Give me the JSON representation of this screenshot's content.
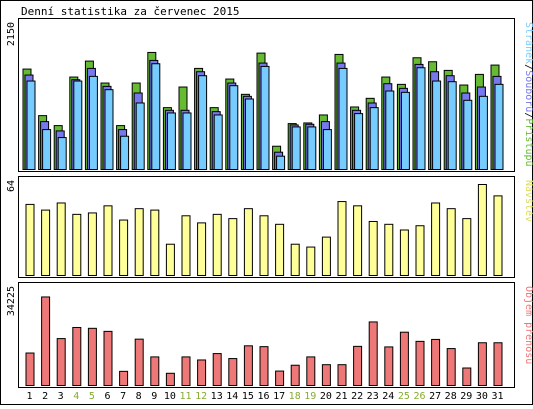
{
  "chart_data": {
    "type": "bar",
    "title": "Denní statistika za červenec 2015",
    "categories": [
      "1",
      "2",
      "3",
      "4",
      "5",
      "6",
      "7",
      "8",
      "9",
      "10",
      "11",
      "12",
      "13",
      "14",
      "15",
      "16",
      "17",
      "18",
      "19",
      "20",
      "21",
      "22",
      "23",
      "24",
      "25",
      "26",
      "27",
      "28",
      "29",
      "30",
      "31"
    ],
    "weekend_days": [
      "4",
      "5",
      "11",
      "12",
      "18",
      "19",
      "25",
      "26"
    ],
    "colors": {
      "pristupu": "#66bb33",
      "souboru": "#7777ee",
      "stranek": "#77ccff",
      "navstev": "#ffff99",
      "objem": "#ee7777",
      "weekend_label": "#88aa33",
      "frame": "#000000",
      "background": "#ffffff"
    },
    "panels": [
      {
        "id": "hits",
        "max_label": "2150",
        "ylim": [
          0,
          2150
        ],
        "legend": {
          "stranek": "Stránek",
          "sep1": "/",
          "souboru": "Souborů",
          "sep2": "/",
          "pristupu": "Přístupů"
        },
        "series": [
          {
            "name": "Přístupů",
            "key": "pristupu",
            "values": [
              1510,
              810,
              660,
              1390,
              1630,
              1300,
              660,
              1300,
              1760,
              930,
              1240,
              1520,
              930,
              1360,
              1130,
              1750,
              350,
              690,
              700,
              820,
              1730,
              940,
              1070,
              1390,
              1280,
              1680,
              1620,
              1490,
              1270,
              1430,
              1570
            ]
          },
          {
            "name": "Souborů",
            "key": "souboru",
            "values": [
              1420,
              720,
              580,
              1350,
              1520,
              1250,
              600,
              1150,
              1640,
              890,
              890,
              1470,
              870,
              1300,
              1100,
              1600,
              260,
              670,
              680,
              720,
              1600,
              890,
              1000,
              1290,
              1220,
              1580,
              1470,
              1410,
              1150,
              1240,
              1400
            ]
          },
          {
            "name": "Stránek",
            "key": "stranek",
            "values": [
              1330,
              600,
              480,
              1330,
              1400,
              1200,
              500,
              1000,
              1590,
              850,
              850,
              1410,
              820,
              1260,
              1060,
              1550,
              200,
              640,
              640,
              600,
              1520,
              840,
              930,
              1180,
              1160,
              1530,
              1330,
              1320,
              1040,
              1100,
              1280
            ]
          }
        ]
      },
      {
        "id": "visits",
        "max_label": "64",
        "ylim": [
          0,
          64
        ],
        "legend": "Návštěv",
        "series": [
          {
            "name": "Návštěv",
            "key": "navstev",
            "values": [
              50,
              46,
              51,
              43,
              44,
              49,
              39,
              47,
              46,
              22,
              42,
              37,
              43,
              40,
              47,
              42,
              36,
              22,
              20,
              27,
              52,
              49,
              38,
              36,
              32,
              35,
              51,
              47,
              40,
              64,
              56
            ]
          }
        ]
      },
      {
        "id": "volume",
        "max_label": "34225",
        "ylim": [
          0,
          34225
        ],
        "legend": "Objem přenosu",
        "series": [
          {
            "name": "Objem přenosu",
            "key": "objem",
            "values": [
              11700,
              31900,
              16900,
              20900,
              20600,
              19500,
              5100,
              16700,
              10300,
              4400,
              10300,
              9200,
              11500,
              9700,
              14300,
              14000,
              5200,
              7300,
              10300,
              7500,
              7500,
              14100,
              22900,
              13900,
              19200,
              15900,
              16600,
              13300,
              6300,
              15400,
              15400
            ]
          }
        ]
      }
    ]
  }
}
